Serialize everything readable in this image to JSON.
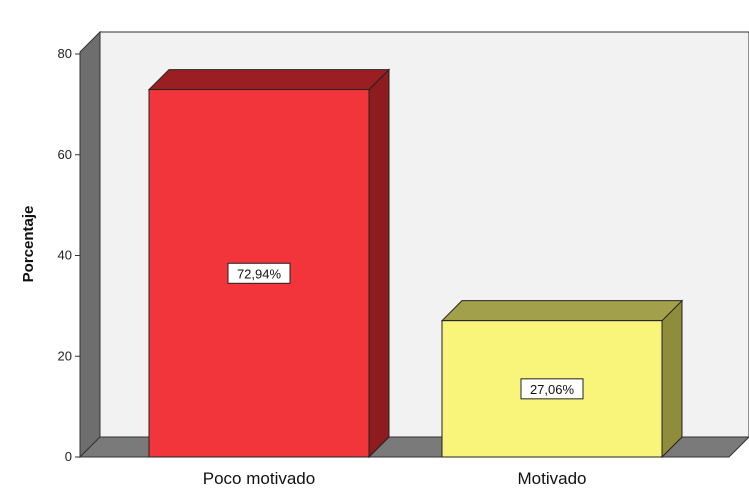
{
  "chart_data": {
    "type": "bar",
    "style": "3d",
    "categories": [
      "Poco motivado",
      "Motivado"
    ],
    "values": [
      72.94,
      27.06
    ],
    "data_labels": [
      "72,94%",
      "27,06%"
    ],
    "ylabel": "Porcentaje",
    "ylim": [
      0,
      80
    ],
    "yticks": [
      0,
      20,
      40,
      60,
      80
    ],
    "ytick_labels": [
      "0",
      "20",
      "40",
      "60",
      "80"
    ],
    "grid": false,
    "legend": false,
    "colors": {
      "bars": [
        "#f1353a",
        "#f8f57a"
      ],
      "bar_tops": [
        "#9b1f22",
        "#a3a04b"
      ],
      "bar_sides": [
        "#8e1c1f",
        "#8f8c3c"
      ],
      "floor": "#7a7a7a",
      "back_wall": "#f2f2f2",
      "side_wall": "#6e6e6e"
    }
  }
}
